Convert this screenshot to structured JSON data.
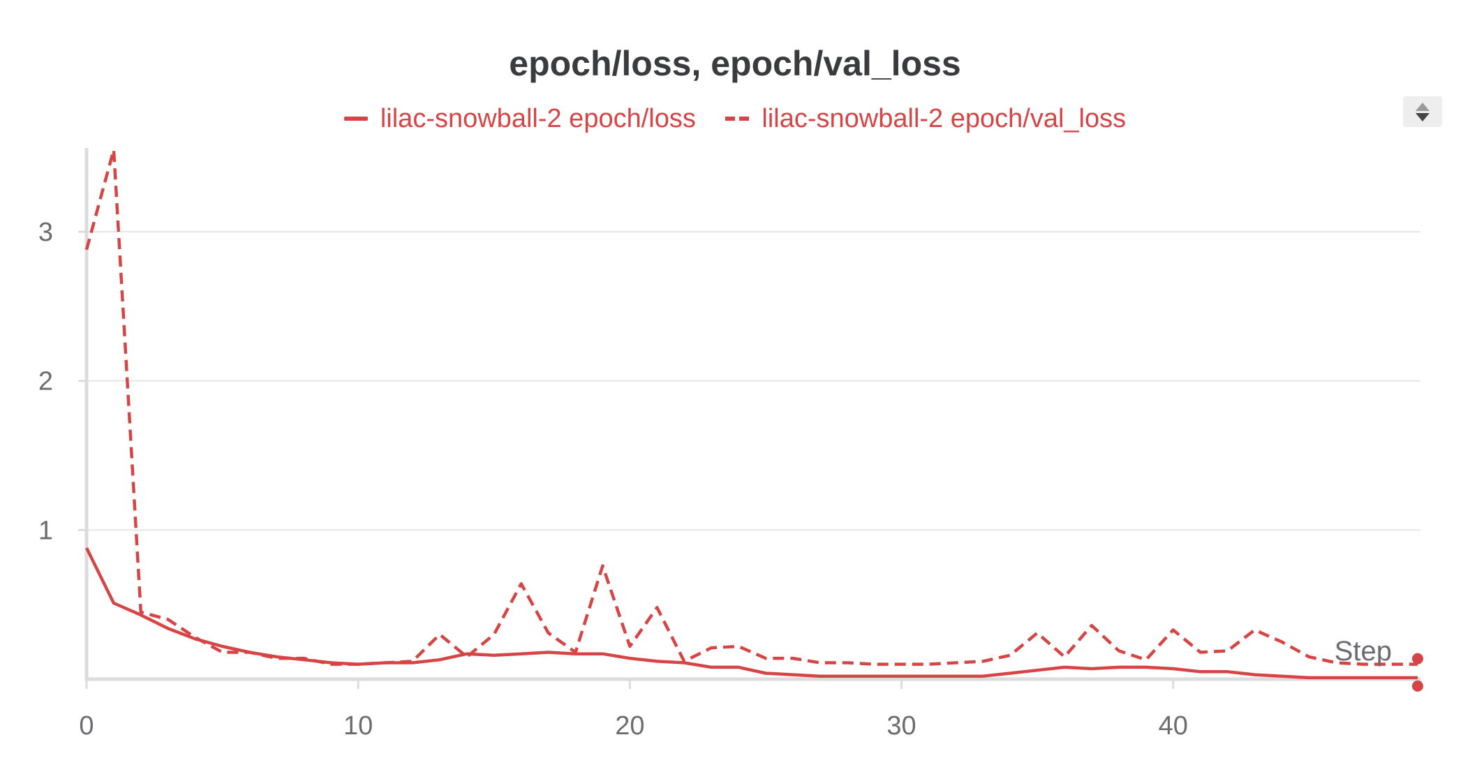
{
  "chart_data": {
    "type": "line",
    "title": "epoch/loss, epoch/val_loss",
    "xlabel": "Step",
    "ylabel": "",
    "xlim": [
      0,
      49
    ],
    "ylim": [
      0,
      3.55
    ],
    "x_ticks": [
      0,
      10,
      20,
      30,
      40
    ],
    "y_ticks": [
      1,
      2,
      3
    ],
    "grid": true,
    "legend_position": "top-center",
    "x": [
      0,
      1,
      2,
      3,
      4,
      5,
      6,
      7,
      8,
      9,
      10,
      11,
      12,
      13,
      14,
      15,
      16,
      17,
      18,
      19,
      20,
      21,
      22,
      23,
      24,
      25,
      26,
      27,
      28,
      29,
      30,
      31,
      32,
      33,
      34,
      35,
      36,
      37,
      38,
      39,
      40,
      41,
      42,
      43,
      44,
      45,
      46,
      47,
      48,
      49
    ],
    "series": [
      {
        "name": "lilac-snowball-2 epoch/loss",
        "style": "solid",
        "color": "#d64545",
        "values": [
          0.88,
          0.51,
          0.43,
          0.34,
          0.27,
          0.22,
          0.18,
          0.15,
          0.13,
          0.11,
          0.1,
          0.11,
          0.11,
          0.13,
          0.17,
          0.16,
          0.17,
          0.18,
          0.17,
          0.17,
          0.14,
          0.12,
          0.11,
          0.08,
          0.08,
          0.04,
          0.03,
          0.02,
          0.02,
          0.02,
          0.02,
          0.02,
          0.02,
          0.02,
          0.04,
          0.06,
          0.08,
          0.07,
          0.08,
          0.08,
          0.07,
          0.05,
          0.05,
          0.03,
          0.02,
          0.01,
          0.01,
          0.01,
          0.01,
          0.01
        ]
      },
      {
        "name": "lilac-snowball-2 epoch/val_loss",
        "style": "dashed",
        "color": "#d64545",
        "values": [
          2.88,
          3.55,
          0.45,
          0.4,
          0.28,
          0.18,
          0.18,
          0.14,
          0.14,
          0.1,
          0.1,
          0.11,
          0.12,
          0.3,
          0.15,
          0.3,
          0.64,
          0.31,
          0.18,
          0.76,
          0.22,
          0.48,
          0.12,
          0.21,
          0.22,
          0.14,
          0.14,
          0.11,
          0.11,
          0.1,
          0.1,
          0.1,
          0.11,
          0.12,
          0.16,
          0.31,
          0.15,
          0.36,
          0.19,
          0.13,
          0.33,
          0.18,
          0.19,
          0.33,
          0.25,
          0.15,
          0.11,
          0.1,
          0.1,
          0.1
        ]
      }
    ]
  },
  "legend_scroll_icon": "up-down-arrows-icon"
}
